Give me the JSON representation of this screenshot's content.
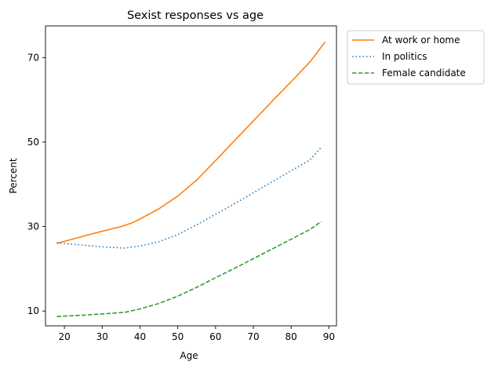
{
  "chart_data": {
    "type": "line",
    "title": "Sexist responses vs age",
    "xlabel": "Age",
    "ylabel": "Percent",
    "xlim": [
      15,
      92
    ],
    "ylim": [
      6.5,
      77.5
    ],
    "xticks": [
      20,
      30,
      40,
      50,
      60,
      70,
      80,
      90
    ],
    "yticks": [
      10,
      30,
      50,
      70
    ],
    "grid": false,
    "legend_position": "outside-top-right",
    "series": [
      {
        "name": "At work or home",
        "color": "#ff7f0e",
        "style": "solid",
        "x": [
          18,
          20,
          25,
          30,
          35,
          38,
          40,
          45,
          50,
          55,
          60,
          65,
          70,
          75,
          80,
          85,
          89
        ],
        "y": [
          26,
          26.5,
          27.7,
          28.9,
          30,
          30.9,
          31.8,
          34.2,
          37.2,
          41,
          45.6,
          50.3,
          55,
          59.7,
          64.3,
          69,
          73.7
        ]
      },
      {
        "name": "In politics",
        "color": "#1f77b4",
        "style": "dotted",
        "x": [
          18,
          20,
          25,
          30,
          36,
          40,
          45,
          50,
          55,
          60,
          65,
          70,
          75,
          80,
          85,
          88
        ],
        "y": [
          26.2,
          26,
          25.6,
          25.2,
          24.9,
          25.4,
          26.4,
          28.1,
          30.4,
          32.9,
          35.4,
          38,
          40.6,
          43.2,
          45.8,
          48.8
        ]
      },
      {
        "name": "Female candidate",
        "color": "#2ca02c",
        "style": "dashed",
        "x": [
          18,
          20,
          25,
          30,
          36,
          40,
          45,
          50,
          55,
          60,
          65,
          70,
          75,
          80,
          85,
          88
        ],
        "y": [
          8.7,
          8.8,
          9,
          9.3,
          9.7,
          10.5,
          11.8,
          13.5,
          15.6,
          17.9,
          20.1,
          22.4,
          24.7,
          27,
          29.3,
          31.2
        ]
      }
    ]
  }
}
